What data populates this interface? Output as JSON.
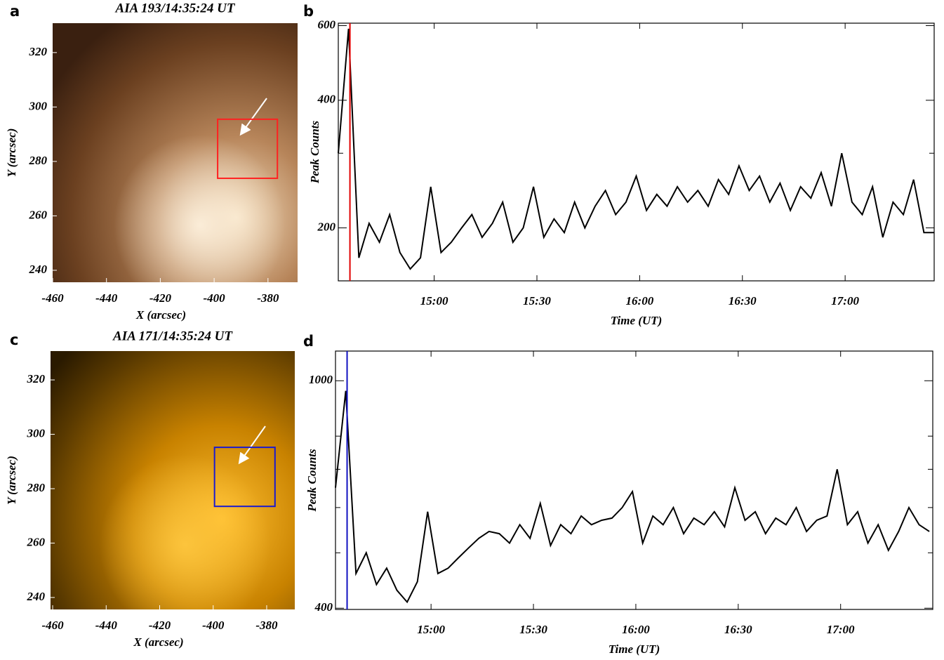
{
  "chart_data": [
    {
      "type": "image",
      "label": "a",
      "title": "AIA 193/14:35:24 UT",
      "xlabel": "X (arcsec)",
      "ylabel": "Y (arcsec)",
      "xlim": [
        -460,
        -369
      ],
      "ylim": [
        235.6,
        330.8
      ],
      "xticks": [
        -460,
        -440,
        -420,
        -400,
        -380
      ],
      "yticks": [
        240,
        260,
        280,
        300,
        320
      ],
      "box": {
        "x": [
          -398.7,
          -376.5
        ],
        "y": [
          273.8,
          295.5
        ],
        "color": "#ff2020"
      }
    },
    {
      "type": "line",
      "label": "b",
      "xlabel": "Time (UT)",
      "ylabel": "Peak Counts",
      "log_y": true,
      "xlim": [
        "14:32",
        "17:26"
      ],
      "xticks": [
        "15:00",
        "15:30",
        "16:00",
        "16:30",
        "17:00"
      ],
      "ylim": [
        150,
        608
      ],
      "yticks": [
        200,
        400,
        600
      ],
      "yminor_ticks": [
        300
      ],
      "marker": {
        "x": "14:35:24",
        "color": "#e00000"
      },
      "color": "#000000",
      "x": [
        "14:32",
        "14:35",
        "14:38",
        "14:41",
        "14:44",
        "14:47",
        "14:50",
        "14:53",
        "14:56",
        "14:59",
        "15:02",
        "15:05",
        "15:08",
        "15:11",
        "15:14",
        "15:17",
        "15:20",
        "15:23",
        "15:26",
        "15:29",
        "15:32",
        "15:35",
        "15:38",
        "15:41",
        "15:44",
        "15:47",
        "15:50",
        "15:53",
        "15:56",
        "15:59",
        "16:02",
        "16:05",
        "16:08",
        "16:11",
        "16:14",
        "16:17",
        "16:20",
        "16:23",
        "16:26",
        "16:29",
        "16:32",
        "16:35",
        "16:38",
        "16:41",
        "16:44",
        "16:47",
        "16:50",
        "16:53",
        "16:56",
        "16:59",
        "17:02",
        "17:05",
        "17:08",
        "17:11",
        "17:14",
        "17:17",
        "17:20",
        "17:23",
        "17:26"
      ],
      "values": [
        300,
        590,
        170,
        205,
        185,
        215,
        175,
        160,
        170,
        250,
        175,
        185,
        200,
        215,
        190,
        205,
        230,
        185,
        200,
        250,
        190,
        210,
        195,
        230,
        200,
        225,
        245,
        215,
        230,
        265,
        220,
        240,
        225,
        250,
        230,
        245,
        225,
        260,
        240,
        280,
        245,
        265,
        230,
        255,
        220,
        250,
        235,
        270,
        225,
        300,
        230,
        215,
        250,
        190,
        230,
        215,
        260,
        195,
        195
      ]
    },
    {
      "type": "image",
      "label": "c",
      "title": "AIA 171/14:35:24 UT",
      "xlabel": "X (arcsec)",
      "ylabel": "Y (arcsec)",
      "xlim": [
        -460.8,
        -369.5
      ],
      "ylim": [
        235.6,
        330.6
      ],
      "xticks": [
        -460,
        -440,
        -420,
        -400,
        -380
      ],
      "yticks": [
        240,
        260,
        280,
        300,
        320
      ],
      "box": {
        "x": [
          -399.5,
          -376.9
        ],
        "y": [
          273.5,
          295.2
        ],
        "color": "#1a1ad0"
      }
    },
    {
      "type": "line",
      "label": "d",
      "xlabel": "Time (UT)",
      "ylabel": "Peak Counts",
      "log_y": true,
      "xlim": [
        "14:32",
        "17:27"
      ],
      "xticks": [
        "15:00",
        "15:30",
        "16:00",
        "16:30",
        "17:00"
      ],
      "ylim": [
        398,
        1127
      ],
      "yticks": [
        400,
        1000
      ],
      "yminor_ticks": [
        500,
        600,
        700,
        800
      ],
      "marker": {
        "x": "14:35:24",
        "color": "#1010c0"
      },
      "color": "#000000",
      "x": [
        "14:32",
        "14:35",
        "14:38",
        "14:41",
        "14:44",
        "14:47",
        "14:50",
        "14:53",
        "14:56",
        "14:59",
        "15:02",
        "15:05",
        "15:08",
        "15:11",
        "15:14",
        "15:17",
        "15:20",
        "15:23",
        "15:26",
        "15:29",
        "15:32",
        "15:35",
        "15:38",
        "15:41",
        "15:44",
        "15:47",
        "15:50",
        "15:53",
        "15:56",
        "15:59",
        "16:02",
        "16:05",
        "16:08",
        "16:11",
        "16:14",
        "16:17",
        "16:20",
        "16:23",
        "16:26",
        "16:29",
        "16:32",
        "16:35",
        "16:38",
        "16:41",
        "16:44",
        "16:47",
        "16:50",
        "16:53",
        "16:56",
        "16:59",
        "17:02",
        "17:05",
        "17:08",
        "17:11",
        "17:14",
        "17:17",
        "17:20",
        "17:23",
        "17:26"
      ],
      "values": [
        650,
        960,
        460,
        500,
        440,
        470,
        430,
        410,
        445,
        590,
        460,
        470,
        490,
        510,
        530,
        545,
        540,
        520,
        560,
        530,
        610,
        515,
        560,
        540,
        580,
        560,
        570,
        575,
        600,
        640,
        520,
        580,
        560,
        600,
        540,
        575,
        560,
        590,
        555,
        650,
        570,
        590,
        540,
        575,
        560,
        600,
        545,
        570,
        580,
        700,
        560,
        590,
        520,
        560,
        505,
        545,
        600,
        560,
        545
      ]
    }
  ]
}
